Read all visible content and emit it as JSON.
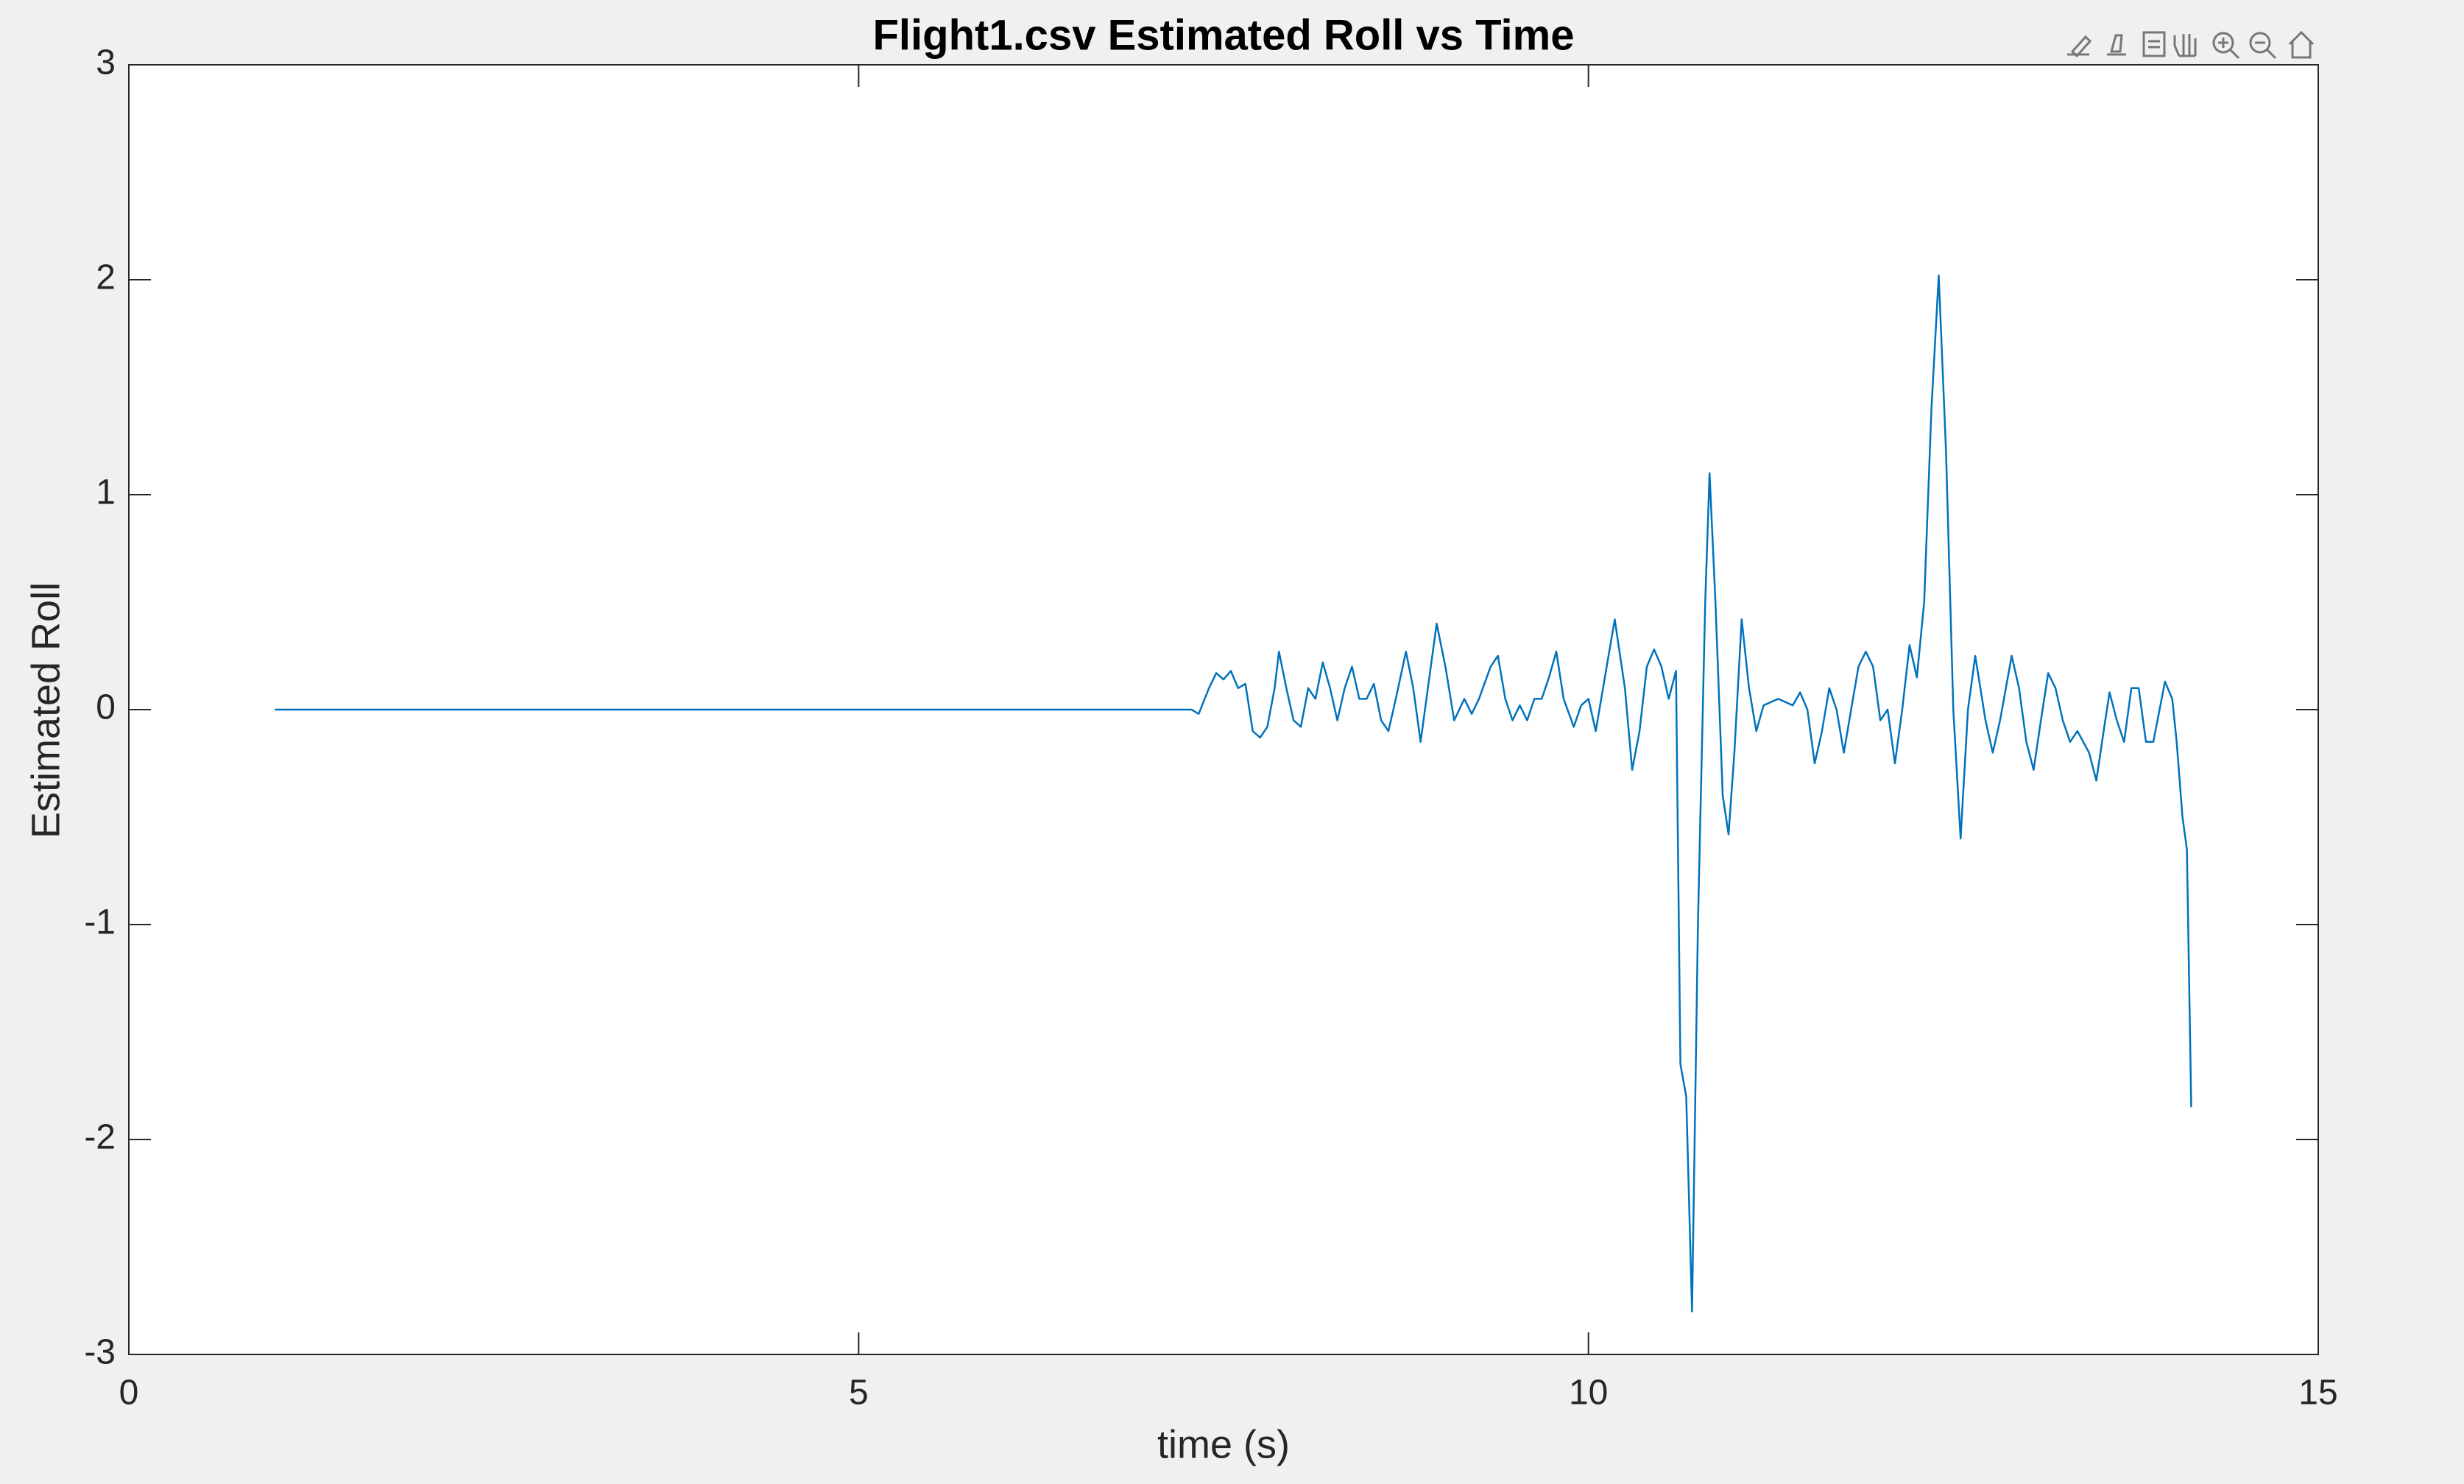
{
  "chart_data": {
    "type": "line",
    "title": "Flight1.csv Estimated Roll vs Time",
    "x_label": "time (s)",
    "y_label": "Estimated Roll",
    "color": "#0072bd",
    "xlim": [
      0,
      15
    ],
    "xticks": [
      0,
      5,
      10,
      15
    ],
    "ylim": [
      -3,
      3
    ],
    "yticks": [
      -3,
      -2,
      -1,
      0,
      1,
      2,
      3
    ],
    "x": [
      1.0,
      7.28,
      7.33,
      7.4,
      7.45,
      7.5,
      7.55,
      7.6,
      7.65,
      7.7,
      7.75,
      7.8,
      7.85,
      7.88,
      7.93,
      7.98,
      8.03,
      8.08,
      8.13,
      8.18,
      8.23,
      8.28,
      8.33,
      8.38,
      8.43,
      8.48,
      8.53,
      8.58,
      8.63,
      8.68,
      8.75,
      8.8,
      8.85,
      8.9,
      8.96,
      9.02,
      9.08,
      9.15,
      9.2,
      9.25,
      9.33,
      9.38,
      9.43,
      9.48,
      9.53,
      9.58,
      9.63,
      9.68,
      9.73,
      9.78,
      9.83,
      9.9,
      9.95,
      10.0,
      10.05,
      10.1,
      10.18,
      10.25,
      10.3,
      10.35,
      10.4,
      10.45,
      10.5,
      10.55,
      10.6,
      10.63,
      10.67,
      10.71,
      10.75,
      10.8,
      10.83,
      10.87,
      10.92,
      10.96,
      11.0,
      11.05,
      11.1,
      11.15,
      11.2,
      11.3,
      11.4,
      11.45,
      11.5,
      11.55,
      11.6,
      11.65,
      11.7,
      11.75,
      11.8,
      11.85,
      11.9,
      11.95,
      12.0,
      12.05,
      12.1,
      12.15,
      12.2,
      12.25,
      12.3,
      12.35,
      12.4,
      12.45,
      12.5,
      12.55,
      12.6,
      12.65,
      12.72,
      12.77,
      12.82,
      12.9,
      12.95,
      13.0,
      13.05,
      13.1,
      13.15,
      13.2,
      13.25,
      13.3,
      13.35,
      13.43,
      13.48,
      13.53,
      13.57,
      13.62,
      13.67,
      13.72,
      13.77,
      13.82,
      13.87,
      13.95,
      14.0,
      14.03,
      14.07,
      14.1,
      14.13
    ],
    "values": [
      0,
      0,
      -0.02,
      0.1,
      0.17,
      0.14,
      0.18,
      0.1,
      0.12,
      -0.1,
      -0.13,
      -0.08,
      0.1,
      0.27,
      0.1,
      -0.05,
      -0.08,
      0.1,
      0.05,
      0.22,
      0.1,
      -0.05,
      0.1,
      0.2,
      0.05,
      0.05,
      0.12,
      -0.05,
      -0.1,
      0.05,
      0.27,
      0.1,
      -0.15,
      0.1,
      0.4,
      0.2,
      -0.05,
      0.05,
      -0.02,
      0.05,
      0.2,
      0.25,
      0.05,
      -0.05,
      0.02,
      -0.05,
      0.05,
      0.05,
      0.15,
      0.27,
      0.05,
      -0.08,
      0.02,
      0.05,
      -0.1,
      0.1,
      0.42,
      0.1,
      -0.28,
      -0.1,
      0.2,
      0.28,
      0.2,
      0.05,
      0.18,
      -1.65,
      -1.8,
      -2.8,
      -1.0,
      0.5,
      1.1,
      0.5,
      -0.4,
      -0.58,
      -0.2,
      0.42,
      0.1,
      -0.1,
      0.02,
      0.05,
      0.02,
      0.08,
      0.0,
      -0.25,
      -0.1,
      0.1,
      0.0,
      -0.2,
      0.0,
      0.2,
      0.27,
      0.2,
      -0.05,
      0.0,
      -0.25,
      0.0,
      0.3,
      0.15,
      0.5,
      1.4,
      2.02,
      1.2,
      0.0,
      -0.6,
      0.0,
      0.25,
      -0.05,
      -0.2,
      -0.05,
      0.25,
      0.1,
      -0.15,
      -0.28,
      -0.05,
      0.17,
      0.1,
      -0.05,
      -0.15,
      -0.1,
      -0.2,
      -0.33,
      -0.1,
      0.08,
      -0.05,
      -0.15,
      0.1,
      0.1,
      -0.15,
      -0.15,
      0.13,
      0.05,
      -0.15,
      -0.5,
      -0.65,
      -1.85
    ]
  }
}
